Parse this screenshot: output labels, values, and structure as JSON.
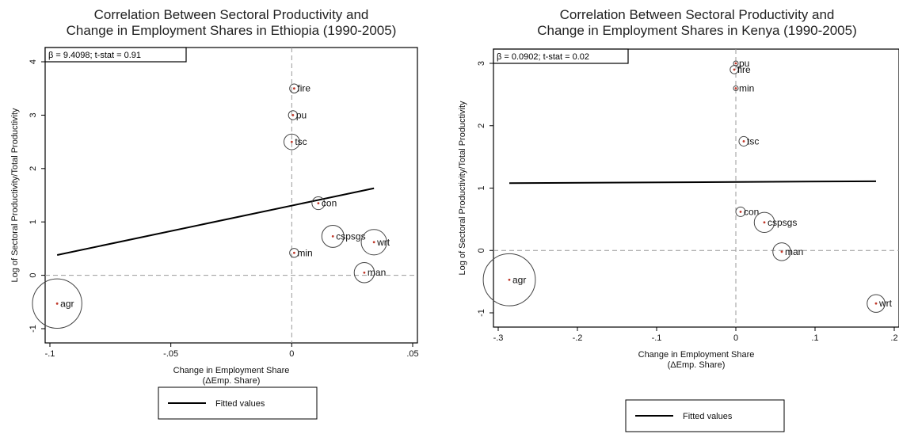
{
  "chart_data": [
    {
      "type": "scatter",
      "title": "Correlation Between Sectoral Productivity and\nChange in Employment Shares in Ethiopia (1990-2005)",
      "xlabel": "Change in Employment Share\n(ΔEmp. Share)",
      "ylabel": "Log of Sectoral Productivity/Total Productivity",
      "annotation": "β =   9.4098; t-stat = 0.91",
      "xlim": [
        -0.1,
        0.05
      ],
      "ylim": [
        -1,
        4
      ],
      "xticks": [
        -0.1,
        -0.05,
        0,
        0.05
      ],
      "xtick_labels": [
        "-.1",
        "-.05",
        "0",
        ".05"
      ],
      "yticks": [
        -1,
        0,
        1,
        2,
        3,
        4
      ],
      "ytick_labels": [
        "-1",
        "0",
        "1",
        "2",
        "3",
        "4"
      ],
      "reference_lines": {
        "x": 0,
        "y": 0
      },
      "points": [
        {
          "label": "fire",
          "x": 0.001,
          "y": 3.5,
          "circle": 0.1
        },
        {
          "label": "pu",
          "x": 0.0005,
          "y": 3.0,
          "circle": 0.1
        },
        {
          "label": "tsc",
          "x": 0.0,
          "y": 2.5,
          "circle": 0.3
        },
        {
          "label": "con",
          "x": 0.011,
          "y": 1.35,
          "circle": 0.2
        },
        {
          "label": "cspsgs",
          "x": 0.017,
          "y": 0.73,
          "circle": 0.6
        },
        {
          "label": "wrt",
          "x": 0.034,
          "y": 0.62,
          "circle": 0.8
        },
        {
          "label": "min",
          "x": 0.001,
          "y": 0.42,
          "circle": 0.1
        },
        {
          "label": "man",
          "x": 0.03,
          "y": 0.05,
          "circle": 0.5
        },
        {
          "label": "agr",
          "x": -0.097,
          "y": -0.53,
          "circle": 3.0
        }
      ],
      "fitted_line": {
        "x": [
          -0.097,
          0.034
        ],
        "y": [
          0.38,
          1.63
        ]
      },
      "legend": {
        "entries": [
          "Fitted values"
        ],
        "position": "bottom"
      }
    },
    {
      "type": "scatter",
      "title": "Correlation Between Sectoral Productivity and\nChange in Employment Shares in Kenya (1990-2005)",
      "xlabel": "Change in Employment Share\n(ΔEmp. Share)",
      "ylabel": "Log of Sectoral Productivity/Total Productivity",
      "annotation": "β =   0.0902; t-stat = 0.02",
      "xlim": [
        -0.3,
        0.2
      ],
      "ylim": [
        -1,
        3
      ],
      "xticks": [
        -0.3,
        -0.2,
        -0.1,
        0,
        0.1,
        0.2
      ],
      "xtick_labels": [
        "-.3",
        "-.2",
        "-.1",
        "0",
        ".1",
        ".2"
      ],
      "yticks": [
        -1,
        0,
        1,
        2,
        3
      ],
      "ytick_labels": [
        "-1",
        "0",
        "1",
        "2",
        "3"
      ],
      "reference_lines": {
        "x": 0,
        "y": 0
      },
      "points": [
        {
          "label": "pu",
          "x": 0.0,
          "y": 3.0,
          "circle": 0.1
        },
        {
          "label": "fire",
          "x": -0.002,
          "y": 2.9,
          "circle": 0.3
        },
        {
          "label": "min",
          "x": 0.0,
          "y": 2.6,
          "circle": 0.1
        },
        {
          "label": "tsc",
          "x": 0.01,
          "y": 1.75,
          "circle": 0.4
        },
        {
          "label": "con",
          "x": 0.006,
          "y": 0.62,
          "circle": 0.4
        },
        {
          "label": "cspsgs",
          "x": 0.036,
          "y": 0.45,
          "circle": 1.8
        },
        {
          "label": "man",
          "x": 0.058,
          "y": -0.02,
          "circle": 1.4
        },
        {
          "label": "wrt",
          "x": 0.177,
          "y": -0.85,
          "circle": 1.4
        },
        {
          "label": "agr",
          "x": -0.286,
          "y": -0.47,
          "circle": 12
        }
      ],
      "fitted_line": {
        "x": [
          -0.286,
          0.177
        ],
        "y": [
          1.08,
          1.11
        ]
      },
      "legend": {
        "entries": [
          "Fitted values"
        ],
        "position": "bottom"
      }
    }
  ]
}
